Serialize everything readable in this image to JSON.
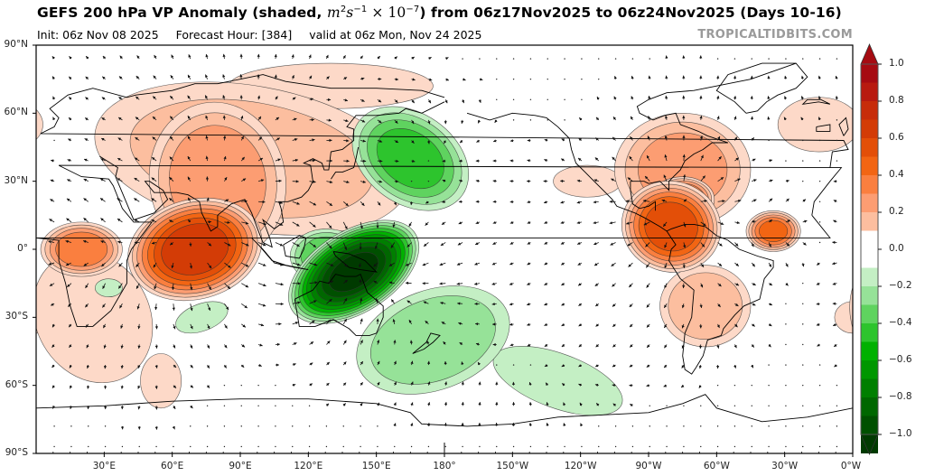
{
  "header": {
    "title_main": "GEFS 200 hPa VP Anomaly (shaded, ",
    "title_unit_base_m": "m",
    "title_unit_exp_m": "2",
    "title_unit_base_s": "s",
    "title_unit_exp_s": "−1",
    "title_unit_times": " × 10",
    "title_unit_exp_10": "−7",
    "title_tail": ") from 06z17Nov2025 to 06z24Nov2025 (Days 10-16)",
    "init": "Init: 06z Nov 08 2025",
    "forecast_hour": "Forecast Hour: [384]",
    "valid": "valid at 06z Mon, Nov 24 2025",
    "brand": "TROPICALTIDBITS.COM"
  },
  "chart_data": {
    "type": "heatmap",
    "title": "GEFS 200 hPa VP Anomaly (shaded, m^2 s^-1 × 10^-7) from 06z17Nov2025 to 06z24Nov2025 (Days 10-16)",
    "projection": "equirectangular",
    "lon_range": [
      0,
      360
    ],
    "lat_range": [
      -90,
      90
    ],
    "y_ticks": [
      "90°N",
      "60°N",
      "30°N",
      "0°",
      "30°S",
      "60°S",
      "90°S"
    ],
    "y_tick_values": [
      90,
      60,
      30,
      0,
      -30,
      -60,
      -90
    ],
    "x_ticks": [
      "30°E",
      "60°E",
      "90°E",
      "120°E",
      "150°E",
      "180°",
      "150°W",
      "120°W",
      "90°W",
      "60°W",
      "30°W",
      "0°W"
    ],
    "x_tick_values": [
      30,
      60,
      90,
      120,
      150,
      180,
      210,
      240,
      270,
      300,
      330,
      360
    ],
    "colorbar": {
      "range": [
        -1.0,
        1.0
      ],
      "step": 0.1,
      "tick_labels": [
        "1.0",
        "0.8",
        "0.6",
        "0.4",
        "0.2",
        "0.0",
        "−0.2",
        "−0.4",
        "−0.6",
        "−0.8",
        "−1.0"
      ],
      "tick_values": [
        1.0,
        0.8,
        0.6,
        0.4,
        0.2,
        0.0,
        -0.2,
        -0.4,
        -0.6,
        -0.8,
        -1.0
      ],
      "positive_colors": [
        "#fdd9c8",
        "#fcbe9f",
        "#fc9d72",
        "#fa7f3f",
        "#f26513",
        "#e34f08",
        "#d33c06",
        "#c72c0a",
        "#b81a10",
        "#a60b12"
      ],
      "negative_colors": [
        "#c4efc4",
        "#96e298",
        "#5fd35f",
        "#2dc42d",
        "#00b100",
        "#009700",
        "#007f00",
        "#006700",
        "#005000",
        "#003a00"
      ],
      "neutral_color": "#ffffff",
      "extend": "both"
    },
    "anomalies": [
      {
        "name": "Indian Ocean / Asia max",
        "lon": 70,
        "lat": 0,
        "value": 0.75,
        "sx": 30,
        "sy": 22,
        "rot": -15
      },
      {
        "name": "Eurasia broad",
        "lon": 95,
        "lat": 40,
        "value": 0.2,
        "sx": 70,
        "sy": 32,
        "rot": 10
      },
      {
        "name": "Central Asia ridge",
        "lon": 80,
        "lat": 30,
        "value": 0.35,
        "sx": 30,
        "sy": 35,
        "rot": -10
      },
      {
        "name": "Africa west",
        "lon": 20,
        "lat": 0,
        "value": 0.45,
        "sx": 18,
        "sy": 12,
        "rot": 0
      },
      {
        "name": "Siberia north",
        "lon": 130,
        "lat": 72,
        "value": 0.17,
        "sx": 45,
        "sy": 10,
        "rot": 0
      },
      {
        "name": "South Atlantic / Africa",
        "lon": 25,
        "lat": -30,
        "value": 0.18,
        "sx": 25,
        "sy": 30,
        "rot": -30
      },
      {
        "name": "Southern Indian tongue",
        "lon": 55,
        "lat": -58,
        "value": 0.17,
        "sx": 9,
        "sy": 12,
        "rot": 0
      },
      {
        "name": "Madagascar minor",
        "lon": 32,
        "lat": -17,
        "value": -0.18,
        "sx": 6,
        "sy": 4,
        "rot": 0
      },
      {
        "name": "Indian Ocean south minor",
        "lon": 73,
        "lat": -30,
        "value": -0.18,
        "sx": 12,
        "sy": 6,
        "rot": -20
      },
      {
        "name": "West Pacific / Maritime Continent min",
        "lon": 140,
        "lat": -10,
        "value": -1.0,
        "sx": 32,
        "sy": 18,
        "rot": -32
      },
      {
        "name": "West Pacific core",
        "lon": 128,
        "lat": -3,
        "value": -0.35,
        "sx": 16,
        "sy": 12,
        "rot": 0
      },
      {
        "name": "North Pacific arm",
        "lon": 165,
        "lat": 40,
        "value": -0.4,
        "sx": 28,
        "sy": 20,
        "rot": 35
      },
      {
        "name": "South Pacific broad",
        "lon": 175,
        "lat": -40,
        "value": -0.25,
        "sx": 35,
        "sy": 22,
        "rot": -20
      },
      {
        "name": "Southern Ocean arm",
        "lon": 230,
        "lat": -58,
        "value": -0.18,
        "sx": 30,
        "sy": 12,
        "rot": 20
      },
      {
        "name": "Americas / Atlantic max",
        "lon": 280,
        "lat": 10,
        "value": 0.65,
        "sx": 22,
        "sy": 20,
        "rot": 15
      },
      {
        "name": "Caribbean max",
        "lon": 285,
        "lat": 22,
        "value": 0.55,
        "sx": 14,
        "sy": 10,
        "rot": 0
      },
      {
        "name": "Atlantic secondary",
        "lon": 325,
        "lat": 8,
        "value": 0.5,
        "sx": 12,
        "sy": 9,
        "rot": 0
      },
      {
        "name": "North America broad",
        "lon": 285,
        "lat": 35,
        "value": 0.3,
        "sx": 30,
        "sy": 25,
        "rot": 0
      },
      {
        "name": "South America",
        "lon": 295,
        "lat": -25,
        "value": 0.25,
        "sx": 20,
        "sy": 18,
        "rot": 0
      },
      {
        "name": "East Pacific lobe",
        "lon": 243,
        "lat": 30,
        "value": 0.17,
        "sx": 15,
        "sy": 7,
        "rot": 0
      },
      {
        "name": "North Atlantic / Europe",
        "lon": 345,
        "lat": 55,
        "value": 0.17,
        "sx": 18,
        "sy": 12,
        "rot": 0
      },
      {
        "name": "South Atlantic east",
        "lon": 360,
        "lat": -30,
        "value": 0.17,
        "sx": 8,
        "sy": 7,
        "rot": 0
      }
    ]
  }
}
